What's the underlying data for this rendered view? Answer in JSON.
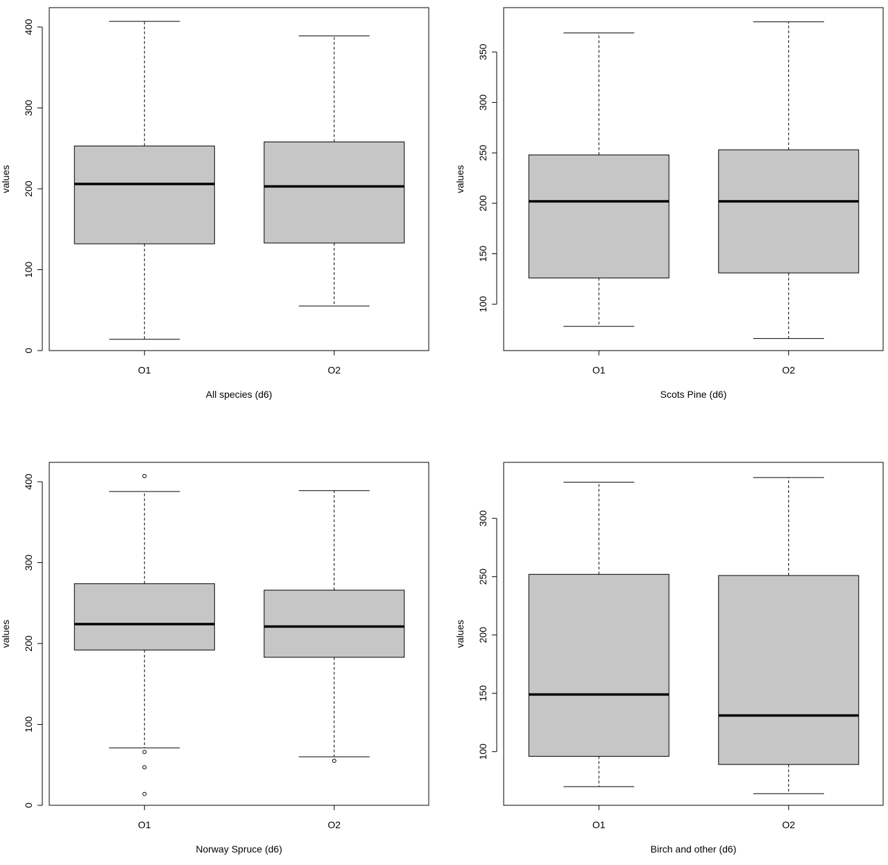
{
  "chart_data": [
    {
      "type": "boxplot",
      "xlabel": "All species (d6)",
      "ylabel": "values",
      "categories": [
        "O1",
        "O2"
      ],
      "yticks": [
        0,
        100,
        200,
        300,
        400
      ],
      "ylim": [
        0,
        424
      ],
      "boxes": [
        {
          "category": "O1",
          "whisker_low": 14,
          "q1": 132,
          "median": 206,
          "q3": 253,
          "whisker_high": 407,
          "outliers": []
        },
        {
          "category": "O2",
          "whisker_low": 55,
          "q1": 133,
          "median": 203,
          "q3": 258,
          "whisker_high": 389,
          "outliers": []
        }
      ]
    },
    {
      "type": "boxplot",
      "xlabel": "Scots Pine (d6)",
      "ylabel": "values",
      "categories": [
        "O1",
        "O2"
      ],
      "yticks": [
        100,
        150,
        200,
        250,
        300,
        350
      ],
      "ylim": [
        54,
        394
      ],
      "boxes": [
        {
          "category": "O1",
          "whisker_low": 78,
          "q1": 126,
          "median": 202,
          "q3": 248,
          "whisker_high": 369,
          "outliers": []
        },
        {
          "category": "O2",
          "whisker_low": 66,
          "q1": 131,
          "median": 202,
          "q3": 253,
          "whisker_high": 380,
          "outliers": []
        }
      ]
    },
    {
      "type": "boxplot",
      "xlabel": "Norway Spruce (d6)",
      "ylabel": "values",
      "categories": [
        "O1",
        "O2"
      ],
      "yticks": [
        0,
        100,
        200,
        300,
        400
      ],
      "ylim": [
        0,
        424
      ],
      "boxes": [
        {
          "category": "O1",
          "whisker_low": 71,
          "q1": 192,
          "median": 224,
          "q3": 274,
          "whisker_high": 388,
          "outliers": [
            407,
            66,
            47,
            14
          ]
        },
        {
          "category": "O2",
          "whisker_low": 60,
          "q1": 183,
          "median": 221,
          "q3": 266,
          "whisker_high": 389,
          "outliers": [
            55
          ]
        }
      ]
    },
    {
      "type": "boxplot",
      "xlabel": "Birch and other (d6)",
      "ylabel": "values",
      "categories": [
        "O1",
        "O2"
      ],
      "yticks": [
        100,
        150,
        200,
        250,
        300
      ],
      "ylim": [
        54,
        348
      ],
      "boxes": [
        {
          "category": "O1",
          "whisker_low": 70,
          "q1": 96,
          "median": 149,
          "q3": 252,
          "whisker_high": 331,
          "outliers": []
        },
        {
          "category": "O2",
          "whisker_low": 64,
          "q1": 89,
          "median": 131,
          "q3": 251,
          "whisker_high": 335,
          "outliers": []
        }
      ]
    }
  ]
}
